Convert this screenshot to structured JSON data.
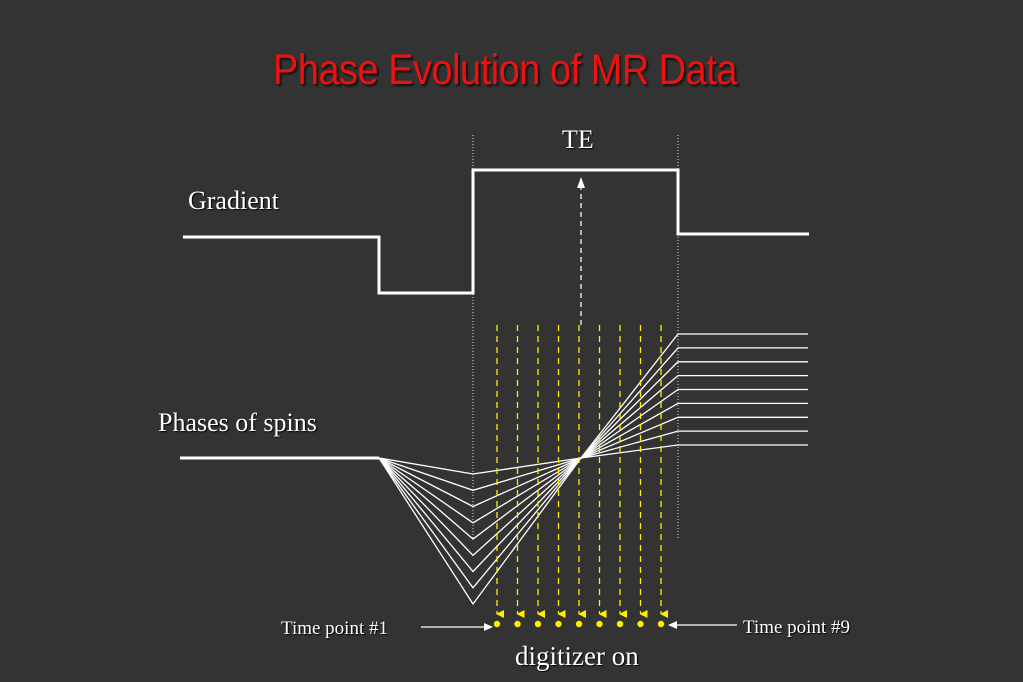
{
  "slide": {
    "title": "Phase Evolution of MR Data",
    "te_label": "TE",
    "gradient_label": "Gradient",
    "phases_label": "Phases of spins",
    "first_point_label": "Time point #1",
    "last_point_label": "Time point #9",
    "digitizer_label": "digitizer on"
  },
  "diagram": {
    "sample_count": 9,
    "spin_line_count": 9,
    "colors": {
      "background": "#333333",
      "title": "#ee1111",
      "lines": "#ffffff",
      "samples": "#ffee00"
    }
  }
}
